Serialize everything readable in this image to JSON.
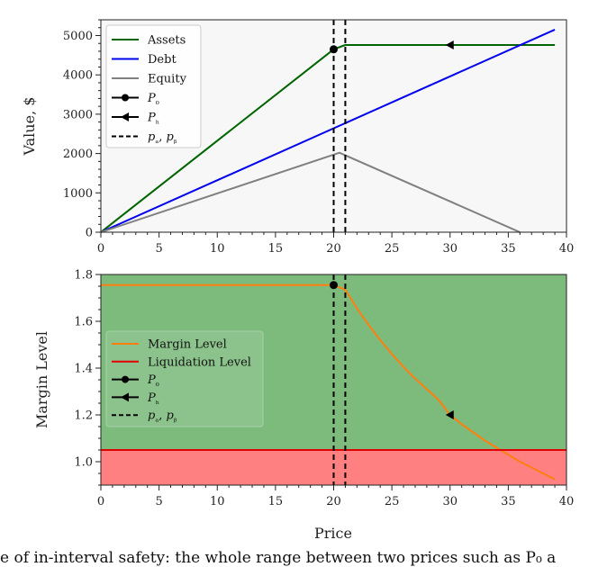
{
  "caption": "e of in-interval safety: the whole range between two prices such as P₀ a",
  "chart_data": [
    {
      "type": "line",
      "xlabel": "",
      "ylabel": "Value, $",
      "xlim": [
        0,
        40
      ],
      "ylim": [
        0,
        5400
      ],
      "xticks": [
        0,
        5,
        10,
        15,
        20,
        25,
        30,
        35,
        40
      ],
      "yticks": [
        0,
        1000,
        2000,
        3000,
        4000,
        5000
      ],
      "grid": false,
      "background": "#f7f7f7",
      "legend_position": "top-left",
      "series": [
        {
          "name": "Assets",
          "color": "#006400",
          "x": [
            0,
            20,
            21,
            39
          ],
          "y": [
            0,
            4650,
            4760,
            4760
          ]
        },
        {
          "name": "Debt",
          "color": "#0000ee",
          "x": [
            0,
            39
          ],
          "y": [
            0,
            5150
          ]
        },
        {
          "name": "Equity",
          "color": "#808080",
          "x": [
            0,
            20.5,
            36
          ],
          "y": [
            0,
            2020,
            0
          ]
        }
      ],
      "markers": [
        {
          "name": "P₀",
          "x": 20,
          "y": 4650,
          "shape": "circle"
        },
        {
          "name": "Pₕ",
          "x": 30,
          "y": 4760,
          "shape": "left-triangle"
        }
      ],
      "vlines": {
        "name": "pₐ, pᵦ",
        "x": [
          20,
          21
        ],
        "style": "dashed",
        "color": "#000000"
      },
      "legend": [
        "Assets",
        "Debt",
        "Equity",
        "P₀",
        "Pₕ",
        "pₐ, pᵦ"
      ]
    },
    {
      "type": "line",
      "xlabel": "Price",
      "ylabel": "Margin Level",
      "xlim": [
        0,
        40
      ],
      "ylim": [
        0.9,
        1.8
      ],
      "xticks": [
        0,
        5,
        10,
        15,
        20,
        25,
        30,
        35,
        40
      ],
      "yticks": [
        1.0,
        1.2,
        1.4,
        1.6,
        1.8
      ],
      "grid": false,
      "safe_color": "#7dbb7d",
      "danger_color": "#ff8080",
      "legend_position": "center-left",
      "series": [
        {
          "name": "Margin Level",
          "color": "#ff7f0e",
          "x": [
            0,
            20,
            21,
            22,
            23,
            24,
            25,
            26,
            27,
            28,
            29,
            30,
            31,
            32,
            33,
            34,
            35,
            36,
            37,
            38,
            39
          ],
          "y": [
            1.755,
            1.755,
            1.735,
            1.655,
            1.585,
            1.52,
            1.46,
            1.405,
            1.355,
            1.31,
            1.265,
            1.2,
            1.16,
            1.125,
            1.09,
            1.06,
            1.03,
            1.0,
            0.975,
            0.95,
            0.925
          ]
        },
        {
          "name": "Liquidation Level",
          "color": "#e00000",
          "x": [
            0,
            40
          ],
          "y": [
            1.05,
            1.05
          ]
        }
      ],
      "markers": [
        {
          "name": "P₀",
          "x": 20,
          "y": 1.755,
          "shape": "circle"
        },
        {
          "name": "Pₕ",
          "x": 30,
          "y": 1.2,
          "shape": "left-triangle"
        }
      ],
      "vlines": {
        "name": "pₐ, pᵦ",
        "x": [
          20,
          21
        ],
        "style": "dashed",
        "color": "#000000"
      },
      "legend": [
        "Margin Level",
        "Liquidation Level",
        "P₀",
        "Pₕ",
        "pₐ, pᵦ"
      ]
    }
  ]
}
